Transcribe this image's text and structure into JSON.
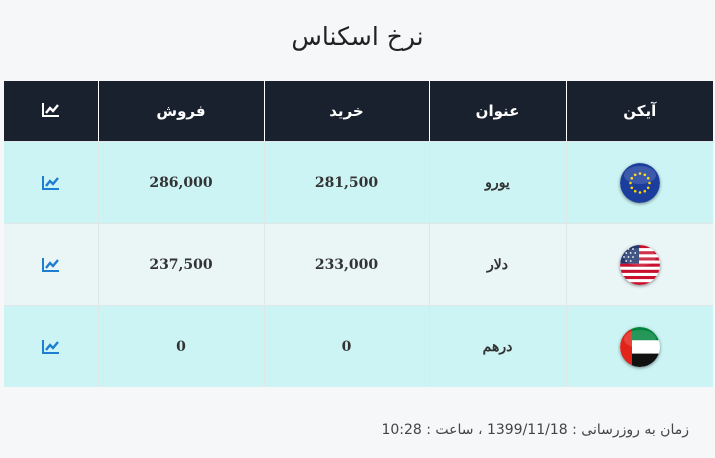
{
  "title": "نرخ اسکناس",
  "table": {
    "headers": {
      "icon": "آیکن",
      "name": "عنوان",
      "buy": "خرید",
      "sell": "فروش",
      "chart_icon": "chart-icon"
    },
    "rows": [
      {
        "flag": "eu-flag-icon",
        "name": "یورو",
        "buy": "281,500",
        "sell": "286,000",
        "chart_icon": "chart-icon"
      },
      {
        "flag": "us-flag-icon",
        "name": "دلار",
        "buy": "233,000",
        "sell": "237,500",
        "chart_icon": "chart-icon"
      },
      {
        "flag": "uae-flag-icon",
        "name": "درهم",
        "buy": "0",
        "sell": "0",
        "chart_icon": "chart-icon"
      }
    ]
  },
  "footer": {
    "text": "زمان به روزرسانی : 1399/11/18 ، ساعت : 10:28"
  },
  "colors": {
    "header_bg": "#19212f",
    "row_light_cyan": "#ccf4f5",
    "row_pale": "#eaf5f6",
    "link_blue": "#1e7fd0"
  }
}
